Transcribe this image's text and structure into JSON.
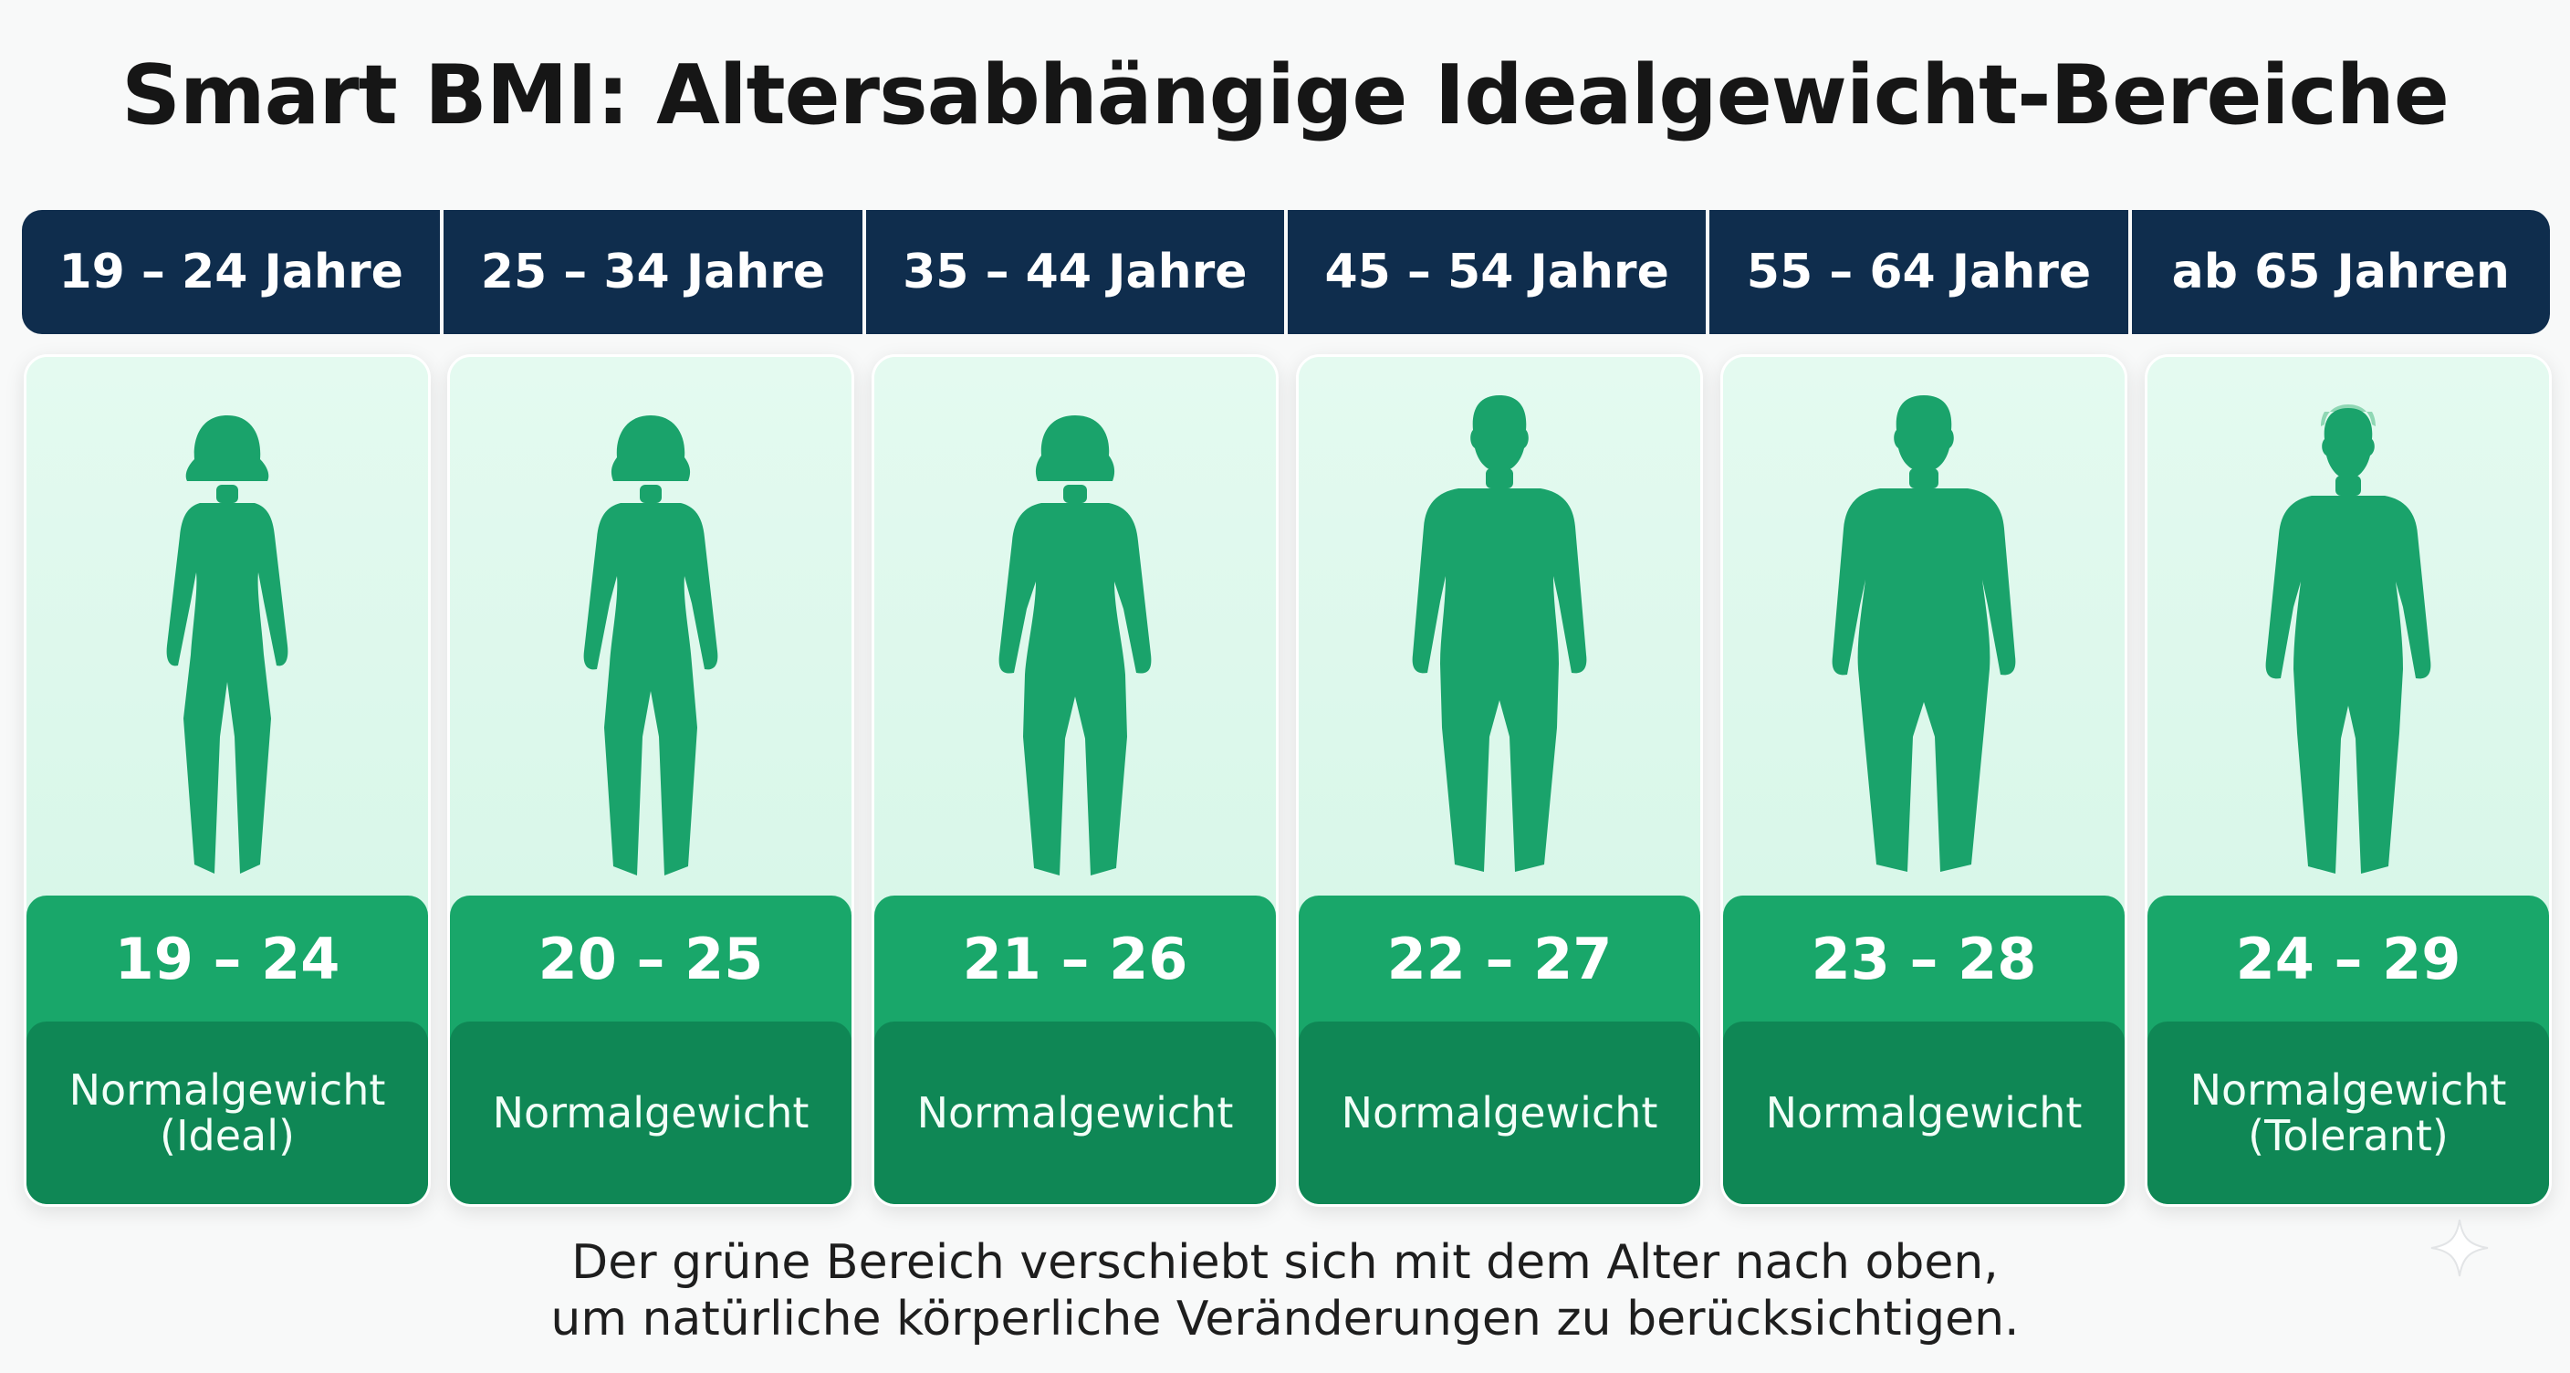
{
  "title": "Smart BMI: Altersabhängige Idealgewicht-Bereiche",
  "age_groups": [
    {
      "header": "19 – 24 Jahre",
      "range": "19 – 24",
      "label": "Normalgewicht\n(Ideal)"
    },
    {
      "header": "25 – 34 Jahre",
      "range": "20 – 25",
      "label": "Normalgewicht"
    },
    {
      "header": "35 – 44 Jahre",
      "range": "21 – 26",
      "label": "Normalgewicht"
    },
    {
      "header": "45 – 54 Jahre",
      "range": "22 – 27",
      "label": "Normalgewicht"
    },
    {
      "header": "55 – 64 Jahre",
      "range": "23 – 28",
      "label": "Normalgewicht"
    },
    {
      "header": "ab 65 Jahren",
      "range": "24 – 29",
      "label": "Normalgewicht\n(Tolerant)"
    }
  ],
  "footnote": "Der grüne Bereich verschiebt sich mit dem Alter nach oben,\num natürliche körperliche Veränderungen zu berücksichtigen.",
  "colors": {
    "header_bg": "#0f2d4d",
    "card_bg": "#e8fbf2",
    "range_bg": "#19a76a",
    "label_bg": "#0f8755",
    "figure": "#1aa36b"
  },
  "icons": {
    "figures": [
      "woman-slim-icon",
      "woman-average-icon",
      "woman-full-icon",
      "man-average-icon",
      "man-full-icon",
      "senior-icon"
    ],
    "corner": "sparkle-icon"
  }
}
